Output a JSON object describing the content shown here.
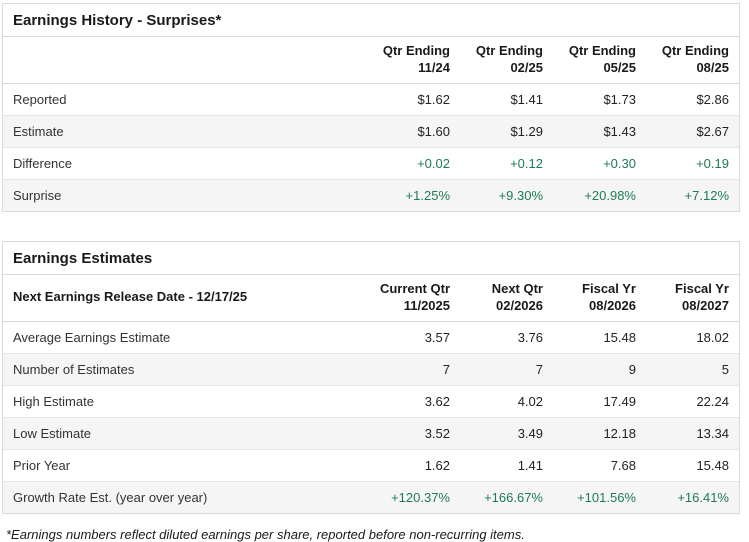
{
  "colors": {
    "positive": "#1e7b55",
    "row_alt_bg": "#f5f5f5",
    "border": "#d9d9d9"
  },
  "earnings_history": {
    "title": "Earnings History - Surprises*",
    "columns": [
      {
        "line1": "Qtr Ending",
        "line2": "11/24"
      },
      {
        "line1": "Qtr Ending",
        "line2": "02/25"
      },
      {
        "line1": "Qtr Ending",
        "line2": "05/25"
      },
      {
        "line1": "Qtr Ending",
        "line2": "08/25"
      }
    ],
    "rows": [
      {
        "label": "Reported",
        "values": [
          "$1.62",
          "$1.41",
          "$1.73",
          "$2.86"
        ],
        "positive": false
      },
      {
        "label": "Estimate",
        "values": [
          "$1.60",
          "$1.29",
          "$1.43",
          "$2.67"
        ],
        "positive": false
      },
      {
        "label": "Difference",
        "values": [
          "+0.02",
          "+0.12",
          "+0.30",
          "+0.19"
        ],
        "positive": true
      },
      {
        "label": "Surprise",
        "values": [
          "+1.25%",
          "+9.30%",
          "+20.98%",
          "+7.12%"
        ],
        "positive": true
      }
    ]
  },
  "earnings_estimates": {
    "title": "Earnings Estimates",
    "release_date_label": "Next Earnings Release Date - 12/17/25",
    "columns": [
      {
        "line1": "Current Qtr",
        "line2": "11/2025"
      },
      {
        "line1": "Next Qtr",
        "line2": "02/2026"
      },
      {
        "line1": "Fiscal Yr",
        "line2": "08/2026"
      },
      {
        "line1": "Fiscal Yr",
        "line2": "08/2027"
      }
    ],
    "rows": [
      {
        "label": "Average Earnings Estimate",
        "values": [
          "3.57",
          "3.76",
          "15.48",
          "18.02"
        ],
        "positive": false
      },
      {
        "label": "Number of Estimates",
        "values": [
          "7",
          "7",
          "9",
          "5"
        ],
        "positive": false
      },
      {
        "label": "High Estimate",
        "values": [
          "3.62",
          "4.02",
          "17.49",
          "22.24"
        ],
        "positive": false
      },
      {
        "label": "Low Estimate",
        "values": [
          "3.52",
          "3.49",
          "12.18",
          "13.34"
        ],
        "positive": false
      },
      {
        "label": "Prior Year",
        "values": [
          "1.62",
          "1.41",
          "7.68",
          "15.48"
        ],
        "positive": false
      },
      {
        "label": "Growth Rate Est. (year over year)",
        "values": [
          "+120.37%",
          "+166.67%",
          "+101.56%",
          "+16.41%"
        ],
        "positive": true
      }
    ]
  },
  "footnote": "*Earnings numbers reflect diluted earnings per share, reported before non-recurring items."
}
